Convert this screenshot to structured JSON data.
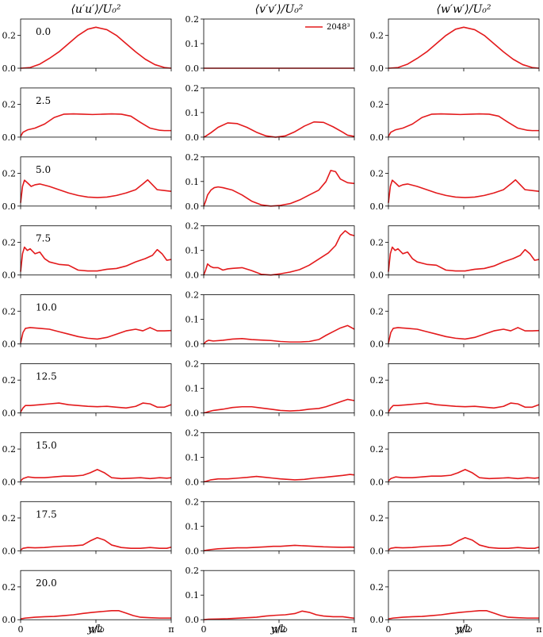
{
  "chart_data": {
    "type": "line",
    "column_titles": [
      "⟨u′u′⟩/U₀²",
      "⟨v′v′⟩/U₀²",
      "⟨w′w′⟩/U₀²"
    ],
    "xlabel": "y/l₀",
    "xlim": [
      0,
      3.14159
    ],
    "x_ticks": [
      {
        "value": 0,
        "label": "0"
      },
      {
        "value": 1.5708,
        "label": "π/2"
      },
      {
        "value": 3.14159,
        "label": "π"
      }
    ],
    "y_ticks": [
      [
        {
          "value": 0,
          "label": "0.0"
        },
        {
          "value": 0.2,
          "label": "0.2"
        }
      ],
      [
        {
          "value": 0,
          "label": "0.0"
        },
        {
          "value": 0.1,
          "label": "0.1"
        },
        {
          "value": 0.2,
          "label": "0.2"
        }
      ],
      [
        {
          "value": 0,
          "label": "0.0"
        },
        {
          "value": 0.2,
          "label": "0.2"
        }
      ]
    ],
    "ylims": [
      [
        0,
        0.3
      ],
      [
        0,
        0.2
      ],
      [
        0,
        0.3
      ]
    ],
    "legend": {
      "label": "2048³",
      "placement": "top-right",
      "color": "#e31a1c"
    },
    "series_color": "#e31a1c",
    "rows": [
      {
        "time_label": "0.0",
        "x": [
          0,
          0.2,
          0.4,
          0.6,
          0.8,
          1.0,
          1.2,
          1.4,
          1.5708,
          1.8,
          2.0,
          2.2,
          2.4,
          2.6,
          2.8,
          3.0,
          3.14159
        ],
        "u": [
          0,
          0.004,
          0.025,
          0.06,
          0.1,
          0.15,
          0.2,
          0.238,
          0.25,
          0.235,
          0.2,
          0.15,
          0.1,
          0.055,
          0.022,
          0.004,
          0
        ],
        "v": [
          0,
          0,
          0,
          0,
          0,
          0,
          0,
          0,
          0,
          0,
          0,
          0,
          0,
          0,
          0,
          0,
          0
        ],
        "w": [
          0,
          0.004,
          0.025,
          0.06,
          0.1,
          0.15,
          0.2,
          0.238,
          0.25,
          0.235,
          0.2,
          0.15,
          0.1,
          0.055,
          0.022,
          0.004,
          0
        ]
      },
      {
        "time_label": "2.5",
        "x": [
          0,
          0.05,
          0.15,
          0.3,
          0.5,
          0.7,
          0.9,
          1.1,
          1.3,
          1.5,
          1.7,
          1.9,
          2.1,
          2.3,
          2.5,
          2.7,
          2.9,
          3.0,
          3.14159
        ],
        "u": [
          0.005,
          0.03,
          0.045,
          0.055,
          0.08,
          0.12,
          0.14,
          0.142,
          0.14,
          0.138,
          0.14,
          0.142,
          0.14,
          0.128,
          0.09,
          0.055,
          0.042,
          0.04,
          0.04
        ],
        "v": [
          0,
          0.005,
          0.018,
          0.04,
          0.058,
          0.055,
          0.04,
          0.02,
          0.005,
          0,
          0.005,
          0.022,
          0.045,
          0.062,
          0.06,
          0.042,
          0.02,
          0.008,
          0.003
        ],
        "w": [
          0.005,
          0.03,
          0.045,
          0.055,
          0.08,
          0.12,
          0.14,
          0.142,
          0.14,
          0.138,
          0.14,
          0.142,
          0.14,
          0.128,
          0.09,
          0.055,
          0.042,
          0.04,
          0.04
        ]
      },
      {
        "time_label": "5.0",
        "x": [
          0,
          0.04,
          0.08,
          0.15,
          0.22,
          0.3,
          0.4,
          0.6,
          0.8,
          1.0,
          1.2,
          1.4,
          1.6,
          1.8,
          2.0,
          2.2,
          2.4,
          2.55,
          2.65,
          2.75,
          2.85,
          3.0,
          3.14159
        ],
        "u": [
          0.02,
          0.12,
          0.158,
          0.14,
          0.12,
          0.13,
          0.135,
          0.12,
          0.1,
          0.08,
          0.065,
          0.055,
          0.052,
          0.055,
          0.065,
          0.08,
          0.1,
          0.135,
          0.16,
          0.13,
          0.1,
          0.095,
          0.09
        ],
        "v": [
          0,
          0.02,
          0.045,
          0.065,
          0.075,
          0.078,
          0.075,
          0.065,
          0.045,
          0.02,
          0.005,
          0,
          0.003,
          0.01,
          0.025,
          0.045,
          0.065,
          0.1,
          0.145,
          0.14,
          0.11,
          0.095,
          0.092
        ],
        "w": [
          0.02,
          0.12,
          0.158,
          0.14,
          0.12,
          0.13,
          0.135,
          0.12,
          0.1,
          0.08,
          0.065,
          0.055,
          0.052,
          0.055,
          0.065,
          0.08,
          0.1,
          0.135,
          0.16,
          0.13,
          0.1,
          0.095,
          0.09
        ]
      },
      {
        "time_label": "7.5",
        "x": [
          0,
          0.04,
          0.08,
          0.14,
          0.2,
          0.3,
          0.4,
          0.5,
          0.6,
          0.8,
          1.0,
          1.2,
          1.4,
          1.6,
          1.8,
          2.0,
          2.2,
          2.4,
          2.6,
          2.75,
          2.85,
          2.95,
          3.05,
          3.14159
        ],
        "u": [
          0.02,
          0.13,
          0.17,
          0.15,
          0.16,
          0.13,
          0.14,
          0.1,
          0.08,
          0.065,
          0.06,
          0.03,
          0.025,
          0.025,
          0.035,
          0.04,
          0.055,
          0.08,
          0.1,
          0.12,
          0.155,
          0.13,
          0.09,
          0.095
        ],
        "v": [
          0,
          0.02,
          0.045,
          0.035,
          0.03,
          0.03,
          0.02,
          0.025,
          0.027,
          0.03,
          0.018,
          0.003,
          0,
          0.005,
          0.012,
          0.022,
          0.04,
          0.065,
          0.09,
          0.12,
          0.16,
          0.18,
          0.165,
          0.16
        ],
        "w": [
          0.02,
          0.13,
          0.17,
          0.15,
          0.16,
          0.13,
          0.14,
          0.1,
          0.08,
          0.065,
          0.06,
          0.03,
          0.025,
          0.025,
          0.035,
          0.04,
          0.055,
          0.08,
          0.1,
          0.12,
          0.155,
          0.13,
          0.09,
          0.095
        ]
      },
      {
        "time_label": "10.0",
        "x": [
          0,
          0.05,
          0.1,
          0.2,
          0.4,
          0.6,
          0.8,
          1.0,
          1.2,
          1.4,
          1.6,
          1.8,
          2.0,
          2.2,
          2.4,
          2.55,
          2.7,
          2.85,
          3.0,
          3.14159
        ],
        "u": [
          0.005,
          0.07,
          0.095,
          0.1,
          0.095,
          0.09,
          0.075,
          0.06,
          0.045,
          0.035,
          0.03,
          0.04,
          0.06,
          0.08,
          0.09,
          0.08,
          0.1,
          0.08,
          0.08,
          0.082
        ],
        "v": [
          0,
          0.01,
          0.015,
          0.012,
          0.015,
          0.02,
          0.022,
          0.018,
          0.016,
          0.014,
          0.01,
          0.008,
          0.008,
          0.01,
          0.018,
          0.035,
          0.05,
          0.065,
          0.075,
          0.06
        ],
        "w": [
          0.005,
          0.07,
          0.095,
          0.1,
          0.095,
          0.09,
          0.075,
          0.06,
          0.045,
          0.035,
          0.03,
          0.04,
          0.06,
          0.08,
          0.09,
          0.08,
          0.1,
          0.08,
          0.08,
          0.082
        ]
      },
      {
        "time_label": "12.5",
        "x": [
          0,
          0.05,
          0.1,
          0.2,
          0.4,
          0.6,
          0.8,
          1.0,
          1.2,
          1.4,
          1.6,
          1.8,
          2.0,
          2.2,
          2.4,
          2.55,
          2.7,
          2.85,
          3.0,
          3.14159
        ],
        "u": [
          0.005,
          0.03,
          0.045,
          0.045,
          0.05,
          0.055,
          0.06,
          0.05,
          0.045,
          0.04,
          0.038,
          0.04,
          0.035,
          0.03,
          0.04,
          0.06,
          0.055,
          0.035,
          0.035,
          0.05
        ],
        "v": [
          0,
          0.002,
          0.005,
          0.01,
          0.015,
          0.022,
          0.025,
          0.025,
          0.02,
          0.015,
          0.01,
          0.008,
          0.01,
          0.015,
          0.018,
          0.025,
          0.035,
          0.045,
          0.055,
          0.05
        ],
        "w": [
          0.005,
          0.03,
          0.045,
          0.045,
          0.05,
          0.055,
          0.06,
          0.05,
          0.045,
          0.04,
          0.038,
          0.04,
          0.035,
          0.03,
          0.04,
          0.06,
          0.055,
          0.035,
          0.035,
          0.05
        ]
      },
      {
        "time_label": "15.0",
        "x": [
          0,
          0.05,
          0.15,
          0.3,
          0.5,
          0.7,
          0.9,
          1.1,
          1.3,
          1.45,
          1.6,
          1.75,
          1.9,
          2.1,
          2.3,
          2.5,
          2.7,
          2.9,
          3.05,
          3.14159
        ],
        "u": [
          0.005,
          0.02,
          0.03,
          0.025,
          0.025,
          0.03,
          0.035,
          0.035,
          0.04,
          0.055,
          0.075,
          0.055,
          0.025,
          0.02,
          0.022,
          0.025,
          0.02,
          0.025,
          0.022,
          0.025
        ],
        "v": [
          0,
          0.002,
          0.008,
          0.012,
          0.012,
          0.015,
          0.018,
          0.022,
          0.018,
          0.015,
          0.012,
          0.01,
          0.008,
          0.01,
          0.015,
          0.018,
          0.022,
          0.026,
          0.03,
          0.028
        ],
        "w": [
          0.005,
          0.02,
          0.03,
          0.025,
          0.025,
          0.03,
          0.035,
          0.035,
          0.04,
          0.055,
          0.075,
          0.055,
          0.025,
          0.02,
          0.022,
          0.025,
          0.02,
          0.025,
          0.022,
          0.025
        ]
      },
      {
        "time_label": "17.5",
        "x": [
          0,
          0.05,
          0.15,
          0.3,
          0.5,
          0.7,
          0.9,
          1.1,
          1.3,
          1.45,
          1.6,
          1.75,
          1.9,
          2.1,
          2.3,
          2.5,
          2.7,
          2.9,
          3.05,
          3.14159
        ],
        "u": [
          0.005,
          0.015,
          0.02,
          0.018,
          0.02,
          0.025,
          0.028,
          0.03,
          0.035,
          0.06,
          0.08,
          0.065,
          0.035,
          0.02,
          0.015,
          0.015,
          0.02,
          0.015,
          0.015,
          0.022
        ],
        "v": [
          0,
          0.002,
          0.005,
          0.008,
          0.01,
          0.012,
          0.012,
          0.014,
          0.016,
          0.018,
          0.018,
          0.02,
          0.022,
          0.02,
          0.018,
          0.016,
          0.015,
          0.014,
          0.015,
          0.014
        ],
        "w": [
          0.005,
          0.015,
          0.02,
          0.018,
          0.02,
          0.025,
          0.028,
          0.03,
          0.035,
          0.06,
          0.08,
          0.065,
          0.035,
          0.02,
          0.015,
          0.015,
          0.02,
          0.015,
          0.015,
          0.022
        ]
      },
      {
        "time_label": "20.0",
        "x": [
          0,
          0.1,
          0.3,
          0.5,
          0.7,
          0.9,
          1.1,
          1.3,
          1.5,
          1.7,
          1.9,
          2.05,
          2.2,
          2.35,
          2.5,
          2.7,
          2.9,
          3.05,
          3.14159
        ],
        "u": [
          0.005,
          0.01,
          0.015,
          0.018,
          0.02,
          0.025,
          0.03,
          0.038,
          0.045,
          0.05,
          0.055,
          0.055,
          0.04,
          0.025,
          0.015,
          0.012,
          0.01,
          0.01,
          0.01
        ],
        "v": [
          0,
          0.002,
          0.003,
          0.004,
          0.006,
          0.008,
          0.01,
          0.015,
          0.018,
          0.02,
          0.025,
          0.035,
          0.03,
          0.02,
          0.015,
          0.012,
          0.012,
          0.008,
          0.006
        ],
        "w": [
          0.005,
          0.01,
          0.015,
          0.018,
          0.02,
          0.025,
          0.03,
          0.038,
          0.045,
          0.05,
          0.055,
          0.055,
          0.04,
          0.025,
          0.015,
          0.012,
          0.01,
          0.01,
          0.01
        ]
      }
    ]
  }
}
